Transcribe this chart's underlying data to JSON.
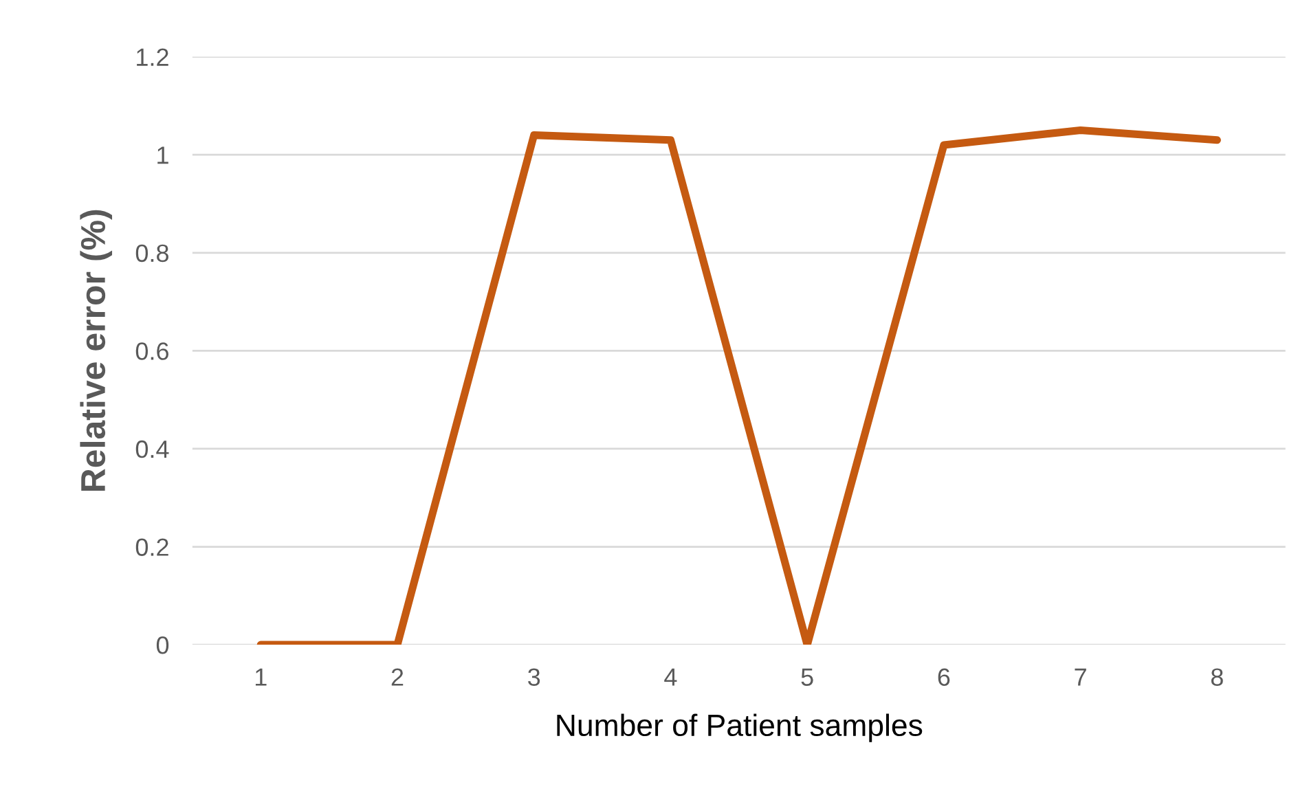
{
  "chart_data": {
    "type": "line",
    "xlabel": "Number of Patient samples",
    "ylabel": "Relative error (%)",
    "categories": [
      "1",
      "2",
      "3",
      "4",
      "5",
      "6",
      "7",
      "8"
    ],
    "series": [
      {
        "color": "#c55a11",
        "values": [
          0,
          0,
          1.04,
          1.03,
          0,
          1.02,
          1.05,
          1.03
        ]
      }
    ],
    "ylim": [
      0,
      1.2
    ],
    "yticks": [
      0,
      0.2,
      0.4,
      0.6,
      0.8,
      1,
      1.2
    ],
    "grid": "y",
    "marker": "none",
    "line_style": "solid"
  }
}
